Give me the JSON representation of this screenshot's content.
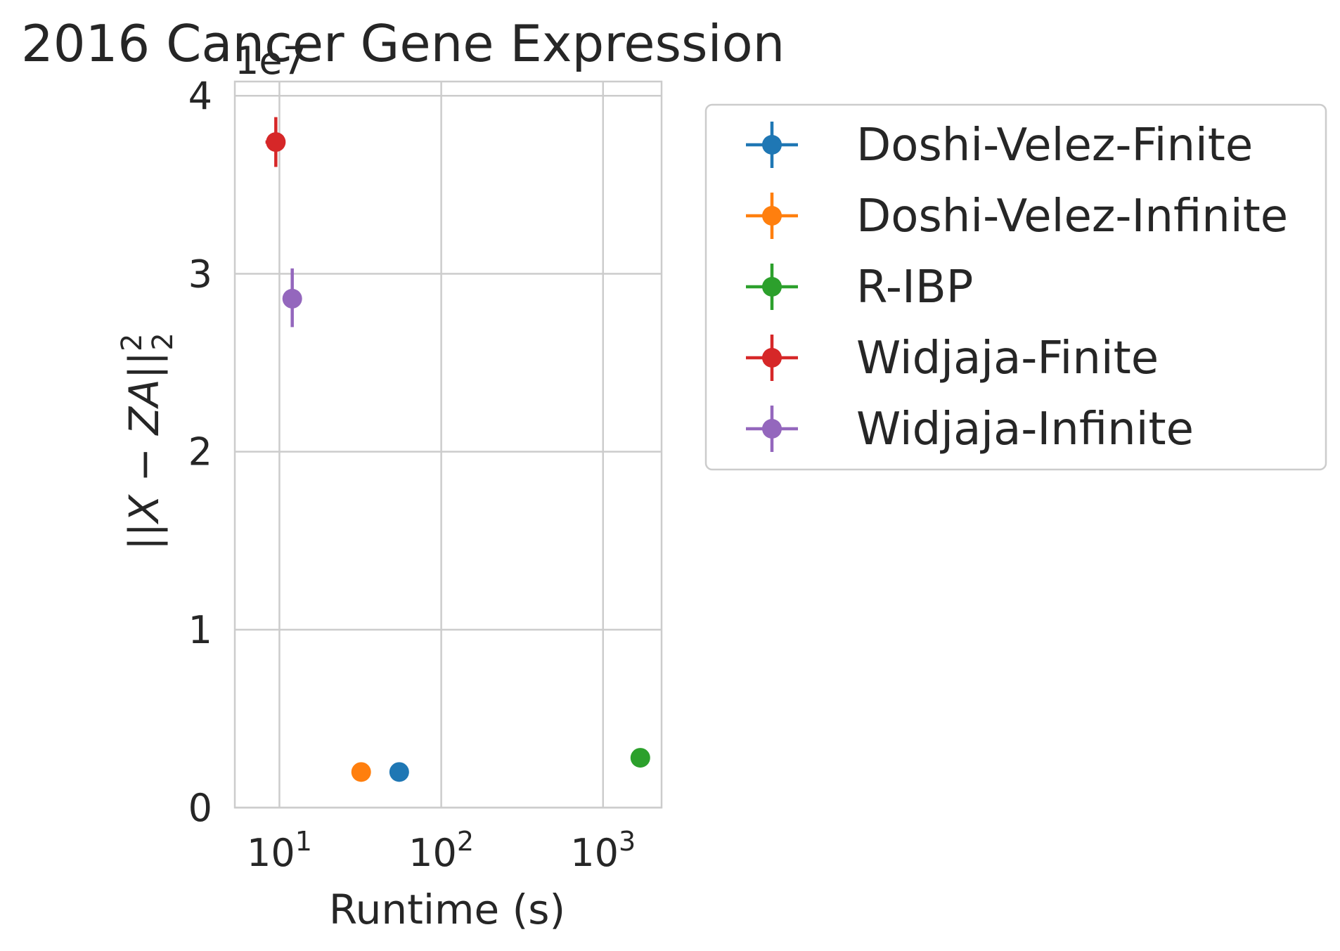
{
  "chart_data": {
    "type": "scatter",
    "title": "2016 Cancer Gene Expression",
    "xlabel": "Runtime (s)",
    "ylabel_parts": [
      "||",
      "X",
      " − ",
      "ZA",
      "||"
    ],
    "ylabel_sup": "2",
    "ylabel_sub": "2",
    "x_scale": "log",
    "xlim": [
      5.3,
      2300
    ],
    "ylim": [
      0,
      4.08
    ],
    "y_offset_label": "1e7",
    "x_ticks": [
      {
        "value": 10,
        "base": "10",
        "exp": "1"
      },
      {
        "value": 100,
        "base": "10",
        "exp": "2"
      },
      {
        "value": 1000,
        "base": "10",
        "exp": "3"
      }
    ],
    "y_ticks": [
      {
        "value": 0,
        "label": "0"
      },
      {
        "value": 1,
        "label": "1"
      },
      {
        "value": 2,
        "label": "2"
      },
      {
        "value": 3,
        "label": "3"
      },
      {
        "value": 4,
        "label": "4"
      }
    ],
    "grid": true,
    "legend_position": "outside-right",
    "series": [
      {
        "name": "Doshi-Velez-Finite",
        "color": "#1f77b4",
        "x": 55,
        "y": 0.2,
        "x_err": [
          55,
          55
        ],
        "y_err": [
          0.2,
          0.2
        ]
      },
      {
        "name": "Doshi-Velez-Infinite",
        "color": "#ff7f0e",
        "x": 32,
        "y": 0.2,
        "x_err": [
          32,
          32
        ],
        "y_err": [
          0.2,
          0.2
        ]
      },
      {
        "name": "R-IBP",
        "color": "#2ca02c",
        "x": 1700,
        "y": 0.28,
        "x_err": [
          1700,
          1700
        ],
        "y_err": [
          0.28,
          0.28
        ]
      },
      {
        "name": "Widjaja-Finite",
        "color": "#d62728",
        "x": 9.5,
        "y": 3.74,
        "x_err": [
          8.2,
          10.8
        ],
        "y_err": [
          3.6,
          3.88
        ]
      },
      {
        "name": "Widjaja-Infinite",
        "color": "#9467bd",
        "x": 12,
        "y": 2.86,
        "x_err": [
          12,
          12
        ],
        "y_err": [
          2.7,
          3.03
        ]
      }
    ]
  }
}
